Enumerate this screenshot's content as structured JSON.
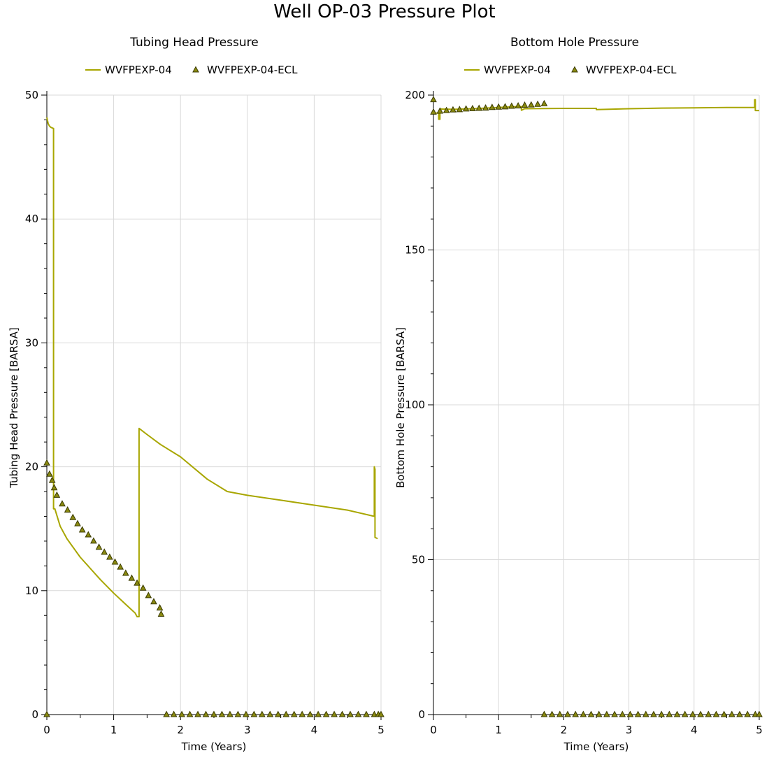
{
  "page": {
    "title": "Well OP-03 Pressure Plot"
  },
  "colors": {
    "line": "#a8a600",
    "marker_fill": "#8a8a10",
    "marker_stroke": "#3a3a00",
    "grid": "#d9d9d9"
  },
  "chart_data": [
    {
      "type": "line",
      "title": "Tubing Head Pressure",
      "xlabel": "Time (Years)",
      "ylabel": "Tubing Head Pressure [BARSA]",
      "xlim": [
        0,
        5
      ],
      "ylim": [
        0,
        50
      ],
      "xticks": [
        0,
        1,
        2,
        3,
        4,
        5
      ],
      "yticks": [
        0,
        10,
        20,
        30,
        40,
        50
      ],
      "grid": true,
      "legend": "top",
      "series": [
        {
          "name": "WVFPEXP-04",
          "style": "line",
          "x": [
            0.0,
            0.02,
            0.04,
            0.06,
            0.1,
            0.1,
            0.1,
            0.12,
            0.2,
            0.3,
            0.5,
            0.8,
            1.0,
            1.2,
            1.32,
            1.35,
            1.35,
            1.38,
            1.38,
            1.5,
            1.7,
            2.0,
            2.4,
            2.7,
            3.0,
            3.5,
            4.0,
            4.5,
            4.9,
            4.9,
            4.91,
            4.91,
            4.95
          ],
          "y": [
            48.2,
            47.7,
            47.5,
            47.4,
            47.3,
            20.0,
            16.6,
            16.6,
            15.2,
            14.2,
            12.7,
            10.9,
            9.8,
            8.8,
            8.2,
            7.9,
            7.9,
            7.9,
            23.1,
            22.6,
            21.8,
            20.8,
            19.0,
            18.0,
            17.7,
            17.3,
            16.9,
            16.5,
            16.0,
            20.0,
            19.8,
            14.3,
            14.2
          ]
        },
        {
          "name": "WVFPEXP-04-ECL",
          "style": "marker",
          "x": [
            0.0,
            0.0,
            0.04,
            0.08,
            0.11,
            0.15,
            0.23,
            0.31,
            0.39,
            0.46,
            0.53,
            0.62,
            0.7,
            0.78,
            0.86,
            0.94,
            1.02,
            1.1,
            1.18,
            1.27,
            1.35,
            1.44,
            1.52,
            1.6,
            1.69,
            1.71,
            1.79,
            1.9,
            2.02,
            2.14,
            2.26,
            2.38,
            2.5,
            2.62,
            2.74,
            2.86,
            2.98,
            3.1,
            3.22,
            3.34,
            3.46,
            3.58,
            3.7,
            3.82,
            3.94,
            4.06,
            4.18,
            4.3,
            4.42,
            4.54,
            4.66,
            4.78,
            4.9,
            4.96,
            5.0
          ],
          "y": [
            0.0,
            20.3,
            19.4,
            18.9,
            18.3,
            17.7,
            17.0,
            16.5,
            15.9,
            15.4,
            14.9,
            14.5,
            14.0,
            13.5,
            13.1,
            12.7,
            12.3,
            11.9,
            11.4,
            11.0,
            10.6,
            10.2,
            9.6,
            9.1,
            8.6,
            8.1,
            0.0,
            0.0,
            0.0,
            0.0,
            0.0,
            0.0,
            0.0,
            0.0,
            0.0,
            0.0,
            0.0,
            0.0,
            0.0,
            0.0,
            0.0,
            0.0,
            0.0,
            0.0,
            0.0,
            0.0,
            0.0,
            0.0,
            0.0,
            0.0,
            0.0,
            0.0,
            0.0,
            0.0,
            0.0
          ]
        }
      ]
    },
    {
      "type": "line",
      "title": "Bottom Hole Pressure",
      "xlabel": "Time (Years)",
      "ylabel": "Bottom Hole Pressure [BARSA]",
      "xlim": [
        0,
        5
      ],
      "ylim": [
        0,
        200
      ],
      "xticks": [
        0,
        1,
        2,
        3,
        4,
        5
      ],
      "yticks": [
        0,
        50,
        100,
        150,
        200
      ],
      "grid": true,
      "legend": "top",
      "series": [
        {
          "name": "WVFPEXP-04",
          "style": "line",
          "x": [
            0.0,
            0.08,
            0.08,
            0.1,
            0.1,
            0.3,
            0.6,
            1.0,
            1.3,
            1.35,
            1.35,
            1.4,
            2.0,
            2.5,
            2.5,
            3.0,
            3.5,
            4.0,
            4.5,
            4.93,
            4.93,
            4.94,
            4.94,
            5.0
          ],
          "y": [
            194.2,
            194.2,
            192.2,
            192.2,
            195.5,
            195.4,
            195.6,
            196.0,
            196.3,
            196.3,
            195.1,
            195.6,
            195.7,
            195.7,
            195.3,
            195.6,
            195.8,
            195.9,
            196.0,
            196.0,
            198.5,
            198.5,
            195.0,
            195.0
          ]
        },
        {
          "name": "WVFPEXP-04-ECL",
          "style": "marker",
          "x": [
            0.0,
            0.0,
            0.1,
            0.2,
            0.3,
            0.4,
            0.5,
            0.6,
            0.7,
            0.8,
            0.9,
            1.0,
            1.1,
            1.2,
            1.3,
            1.4,
            1.5,
            1.6,
            1.7,
            1.7,
            1.82,
            1.94,
            2.06,
            2.18,
            2.3,
            2.42,
            2.54,
            2.66,
            2.78,
            2.9,
            3.02,
            3.14,
            3.26,
            3.38,
            3.5,
            3.62,
            3.74,
            3.86,
            3.98,
            4.1,
            4.22,
            4.34,
            4.46,
            4.58,
            4.7,
            4.82,
            4.94,
            5.0
          ],
          "y": [
            198.5,
            194.5,
            194.8,
            195.0,
            195.2,
            195.3,
            195.5,
            195.6,
            195.7,
            195.8,
            196.0,
            196.1,
            196.2,
            196.4,
            196.5,
            196.7,
            196.8,
            197.0,
            197.2,
            0.0,
            0.0,
            0.0,
            0.0,
            0.0,
            0.0,
            0.0,
            0.0,
            0.0,
            0.0,
            0.0,
            0.0,
            0.0,
            0.0,
            0.0,
            0.0,
            0.0,
            0.0,
            0.0,
            0.0,
            0.0,
            0.0,
            0.0,
            0.0,
            0.0,
            0.0,
            0.0,
            0.0,
            0.0
          ]
        }
      ]
    }
  ]
}
